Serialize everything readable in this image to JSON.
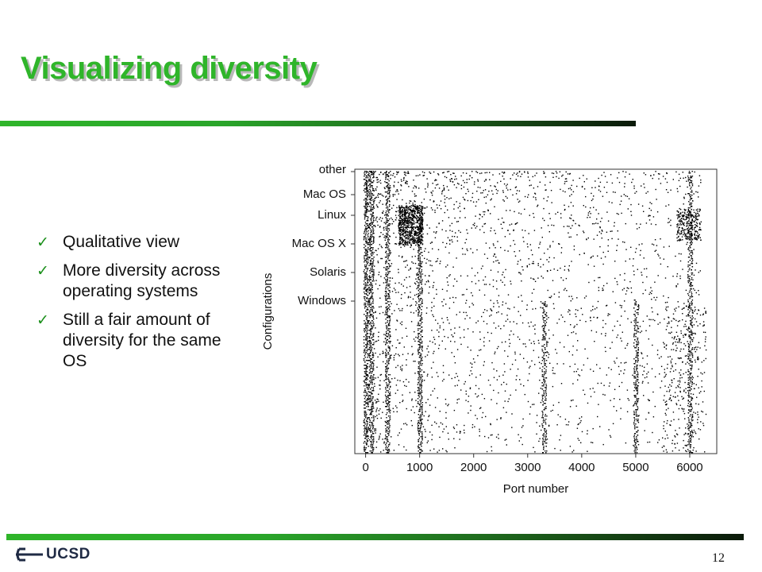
{
  "slide": {
    "title": "Visualizing diversity",
    "page_number": "12"
  },
  "bullets": [
    {
      "text": "Qualitative view"
    },
    {
      "text": "More diversity across operating systems"
    },
    {
      "text": "Still a fair amount of diversity for the same OS"
    }
  ],
  "logo": {
    "text": "UCSD"
  },
  "colors": {
    "title": "#2fb52a",
    "rule_start": "#2fb52a",
    "rule_end": "#0b1a0a",
    "points": "#000000"
  },
  "chart_data": {
    "type": "scatter",
    "xlabel": "Port number",
    "ylabel": "Configurations",
    "xlim": [
      -200,
      6500
    ],
    "xticks": [
      0,
      1000,
      2000,
      3000,
      4000,
      5000,
      6000
    ],
    "xtick_labels": [
      "0",
      "1000",
      "2000",
      "3000",
      "4000",
      "5000",
      "6000"
    ],
    "y_categories": [
      "other",
      "Mac OS",
      "Linux",
      "Mac OS X",
      "Solaris",
      "Windows"
    ],
    "grid": false,
    "legend": "none",
    "port_columns": [
      {
        "port": 0,
        "density": 0.9,
        "from": "other",
        "to": "bottom"
      },
      {
        "port": 100,
        "density": 0.9,
        "from": "other",
        "to": "bottom"
      },
      {
        "port": 400,
        "density": 0.85,
        "from": "other",
        "to": "bottom"
      },
      {
        "port": 1000,
        "density": 0.95,
        "from": "Linux",
        "to": "bottom"
      },
      {
        "port": 3300,
        "density": 0.75,
        "from": "Windows",
        "to": "bottom"
      },
      {
        "port": 5000,
        "density": 0.8,
        "from": "Windows",
        "to": "bottom"
      },
      {
        "port": 6000,
        "density": 0.7,
        "from": "other",
        "to": "bottom"
      }
    ]
  }
}
